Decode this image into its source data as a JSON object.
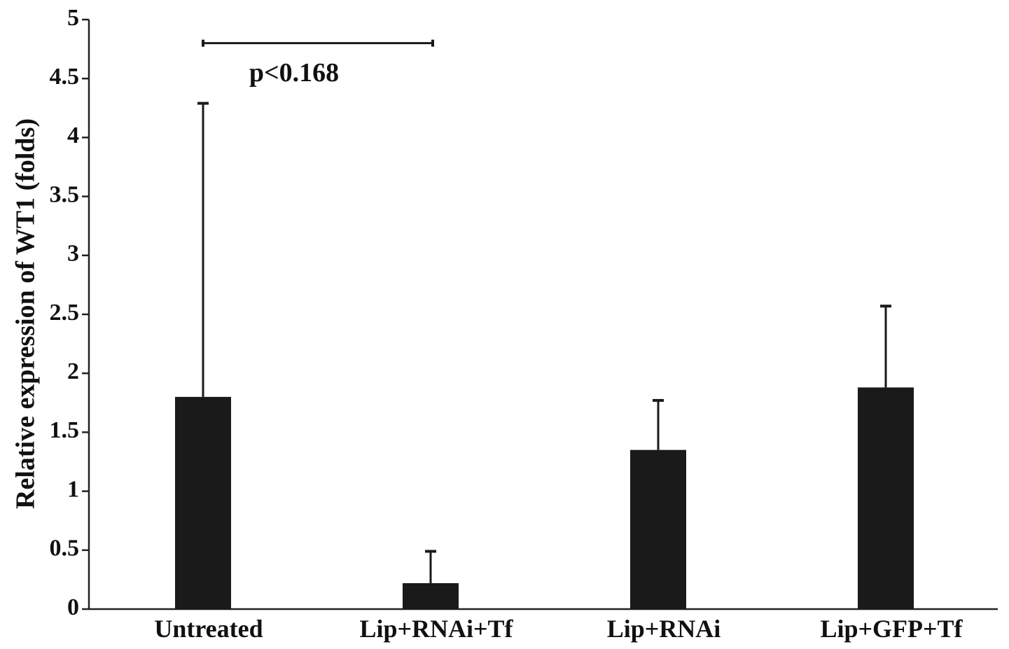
{
  "chart_data": {
    "type": "bar",
    "title": "",
    "xlabel": "",
    "ylabel": "Relative expression of WT1 (folds)",
    "categories": [
      "Untreated",
      "Lip+RNAi+Tf",
      "Lip+RNAi",
      "Lip+GFP+Tf"
    ],
    "values": [
      1.8,
      0.22,
      1.35,
      1.88
    ],
    "error_upper": [
      4.29,
      0.49,
      1.77,
      2.57
    ],
    "ylim": [
      0,
      5
    ],
    "yticks": [
      "0",
      "0.5",
      "1",
      "1.5",
      "2",
      "2.5",
      "3",
      "3.5",
      "4",
      "4.5",
      "5"
    ],
    "ytick_values": [
      0,
      0.5,
      1,
      1.5,
      2,
      2.5,
      3,
      3.5,
      4,
      4.5,
      5
    ],
    "grid": false,
    "bar_color": "#1a1a1a",
    "annotation": {
      "text": "p<0.168",
      "from_category": 0,
      "to_category": 1,
      "y": 4.8
    }
  }
}
